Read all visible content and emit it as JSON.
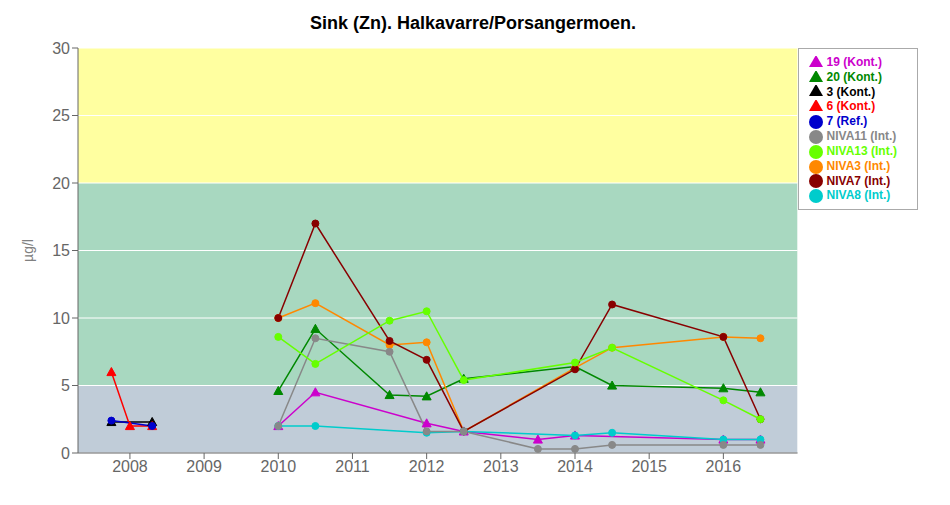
{
  "chart_data": {
    "type": "line",
    "title": "Sink (Zn). Halkavarre/Porsangermoen.",
    "y_label": "µg/l",
    "xlim": [
      2007.3,
      2017.0
    ],
    "xticks": [
      2008,
      2009,
      2010,
      2011,
      2012,
      2013,
      2014,
      2015,
      2016
    ],
    "ylim": [
      0,
      30
    ],
    "yticks": [
      0,
      5,
      10,
      15,
      20,
      25,
      30
    ],
    "grid": true,
    "legend": "right",
    "bands": [
      {
        "from": 20,
        "to": 30,
        "color": "#FFFFA0"
      },
      {
        "from": 5,
        "to": 20,
        "color": "#A8D8C0"
      },
      {
        "from": 0,
        "to": 5,
        "color": "#C0CCD8"
      }
    ],
    "series": [
      {
        "name": "3 (Kont.)",
        "color": "#000000",
        "marker": "triangle",
        "line_style": "solid",
        "x": [
          2007.75,
          2008.3
        ],
        "values": [
          2.3,
          2.3
        ]
      },
      {
        "name": "6 (Kont.)",
        "color": "#FF0000",
        "marker": "triangle",
        "line_style": "solid",
        "x": [
          2007.75,
          2008.0,
          2008.3
        ],
        "values": [
          6.0,
          2.0,
          2.0
        ]
      },
      {
        "name": "7 (Ref.)",
        "color": "#0000CC",
        "marker": "circle",
        "line_style": "solid",
        "x": [
          2007.75,
          2008.3
        ],
        "values": [
          2.4,
          2.0
        ]
      },
      {
        "name": "19 (Kont.)",
        "color": "#CC00CC",
        "marker": "triangle",
        "line_style": "solid",
        "x": [
          2010.0,
          2010.5,
          2012.0,
          2012.5,
          2013.5,
          2014.0,
          2016.0,
          2016.5
        ],
        "values": [
          2.0,
          4.5,
          2.2,
          1.6,
          1.0,
          1.3,
          1.0,
          1.0
        ]
      },
      {
        "name": "20 (Kont.)",
        "color": "#008800",
        "marker": "triangle",
        "line_style": "solid",
        "x": [
          2010.0,
          2010.5,
          2011.5,
          2012.0,
          2012.5,
          2014.0,
          2014.5,
          2016.0,
          2016.5
        ],
        "values": [
          4.6,
          9.2,
          4.3,
          4.2,
          5.5,
          6.4,
          5.0,
          4.8,
          4.5
        ]
      },
      {
        "name": "NIVA3 (Int.)",
        "color": "#FF8800",
        "marker": "circle",
        "line_style": "solid",
        "x": [
          2010.0,
          2010.5,
          2011.5,
          2012.0,
          2012.5,
          2014.0,
          2014.5,
          2016.0,
          2016.5
        ],
        "values": [
          10.0,
          11.1,
          8.0,
          8.2,
          1.6,
          6.3,
          7.8,
          8.6,
          8.5
        ]
      },
      {
        "name": "NIVA7 (Int.)",
        "color": "#880000",
        "marker": "circle",
        "line_style": "solid",
        "x": [
          2010.0,
          2010.5,
          2011.5,
          2012.0,
          2012.5,
          2014.0,
          2014.5,
          2016.0,
          2016.5
        ],
        "values": [
          10.0,
          17.0,
          8.3,
          6.9,
          1.6,
          6.2,
          11.0,
          8.6,
          2.5
        ]
      },
      {
        "name": "NIVA8 (Int.)",
        "color": "#00CCCC",
        "marker": "circle",
        "line_style": "solid",
        "x": [
          2010.0,
          2010.5,
          2012.0,
          2012.5,
          2014.0,
          2014.5,
          2016.0,
          2016.5
        ],
        "values": [
          2.0,
          2.0,
          1.5,
          1.6,
          1.3,
          1.5,
          1.0,
          1.0
        ]
      },
      {
        "name": "NIVA11 (Int.)",
        "color": "#888888",
        "marker": "circle",
        "line_style": "solid",
        "x": [
          2010.0,
          2010.5,
          2011.5,
          2012.0,
          2012.5,
          2013.5,
          2014.0,
          2014.5,
          2016.0,
          2016.5
        ],
        "values": [
          2.0,
          8.5,
          7.5,
          1.6,
          1.6,
          0.3,
          0.3,
          0.6,
          0.6,
          0.6
        ]
      },
      {
        "name": "NIVA13 (Int.)",
        "color": "#66FF00",
        "marker": "circle",
        "line_style": "solid",
        "x": [
          2010.0,
          2010.5,
          2011.5,
          2012.0,
          2012.5,
          2014.0,
          2014.5,
          2016.0,
          2016.5
        ],
        "values": [
          8.6,
          6.6,
          9.8,
          10.5,
          5.4,
          6.7,
          7.8,
          3.9,
          2.5
        ]
      }
    ]
  }
}
